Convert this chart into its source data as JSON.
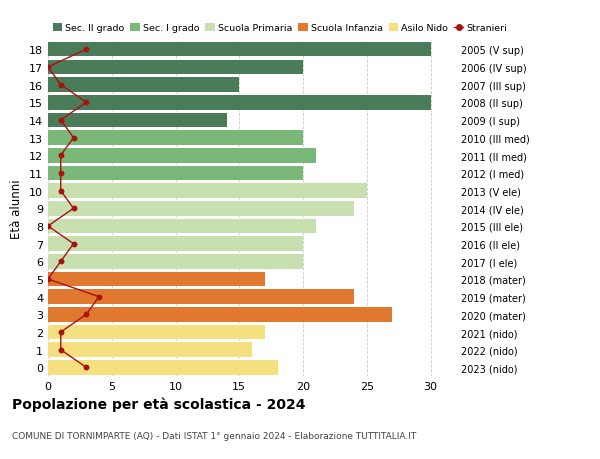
{
  "ages": [
    18,
    17,
    16,
    15,
    14,
    13,
    12,
    11,
    10,
    9,
    8,
    7,
    6,
    5,
    4,
    3,
    2,
    1,
    0
  ],
  "years": [
    "2005 (V sup)",
    "2006 (IV sup)",
    "2007 (III sup)",
    "2008 (II sup)",
    "2009 (I sup)",
    "2010 (III med)",
    "2011 (II med)",
    "2012 (I med)",
    "2013 (V ele)",
    "2014 (IV ele)",
    "2015 (III ele)",
    "2016 (II ele)",
    "2017 (I ele)",
    "2018 (mater)",
    "2019 (mater)",
    "2020 (mater)",
    "2021 (nido)",
    "2022 (nido)",
    "2023 (nido)"
  ],
  "bar_values": [
    30,
    20,
    15,
    30,
    14,
    20,
    21,
    20,
    25,
    24,
    21,
    20,
    20,
    17,
    24,
    27,
    17,
    16,
    18
  ],
  "bar_colors": [
    "#4a7c59",
    "#4a7c59",
    "#4a7c59",
    "#4a7c59",
    "#4a7c59",
    "#7ab87a",
    "#7ab87a",
    "#7ab87a",
    "#c8e0b0",
    "#c8e0b0",
    "#c8e0b0",
    "#c8e0b0",
    "#c8e0b0",
    "#e07830",
    "#e07830",
    "#e07830",
    "#f5e080",
    "#f5e080",
    "#f5e080"
  ],
  "stranieri_values": [
    3,
    0,
    1,
    3,
    1,
    2,
    1,
    1,
    1,
    2,
    0,
    2,
    1,
    0,
    4,
    3,
    1,
    1,
    3
  ],
  "stranieri_color": "#aa1111",
  "legend_labels": [
    "Sec. II grado",
    "Sec. I grado",
    "Scuola Primaria",
    "Scuola Infanzia",
    "Asilo Nido",
    "Stranieri"
  ],
  "legend_colors": [
    "#4a7c59",
    "#7ab87a",
    "#c8e0b0",
    "#e07830",
    "#f5e080",
    "#aa1111"
  ],
  "title": "Popolazione per età scolastica - 2024",
  "subtitle": "COMUNE DI TORNIMPARTE (AQ) - Dati ISTAT 1° gennaio 2024 - Elaborazione TUTTITALIA.IT",
  "ylabel_left": "Età alunni",
  "xlim": [
    0,
    32
  ],
  "xticks": [
    0,
    5,
    10,
    15,
    20,
    25,
    30
  ],
  "background_color": "#ffffff",
  "grid_color": "#cccccc"
}
